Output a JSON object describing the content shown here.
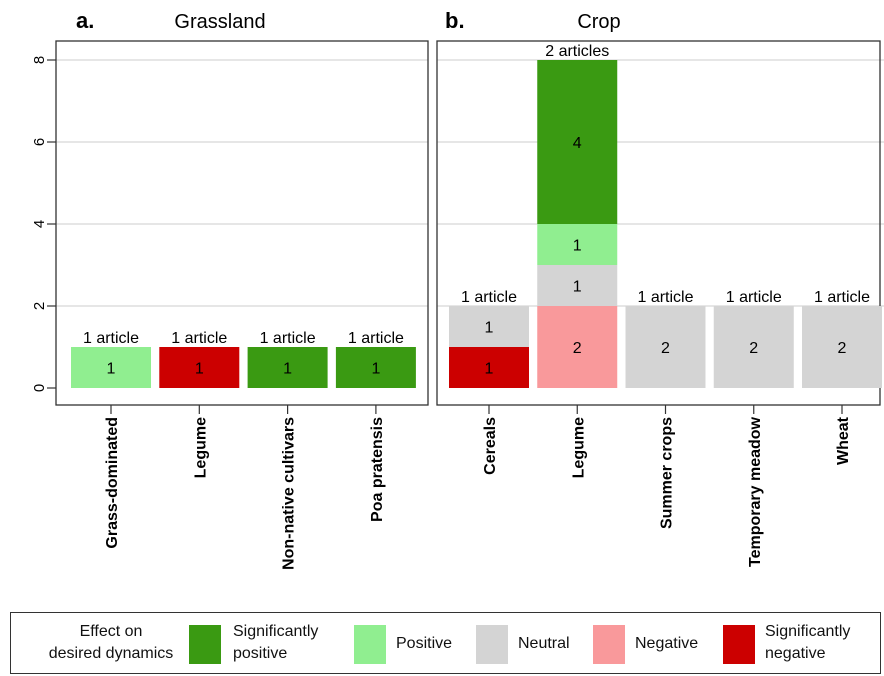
{
  "chart_data": {
    "type": "bar",
    "stacked": true,
    "yticks": [
      0,
      2,
      4,
      6,
      8
    ],
    "ylim": [
      0,
      8.4
    ],
    "grid": true,
    "colors": {
      "sig_pos": "#3a9a12",
      "pos": "#90ee90",
      "neutral": "#d4d4d4",
      "neg": "#f9999b",
      "sig_neg": "#cc0000"
    },
    "panels": [
      {
        "letter": "a.",
        "title": "Grassland",
        "bars": [
          {
            "category": "Grass-dominated",
            "article_label": "1 article",
            "segments": [
              {
                "effect": "pos",
                "value": 1,
                "label": "1"
              }
            ]
          },
          {
            "category": "Legume",
            "article_label": "1 article",
            "segments": [
              {
                "effect": "sig_neg",
                "value": 1,
                "label": "1"
              }
            ]
          },
          {
            "category": "Non-native cultivars",
            "article_label": "1 article",
            "segments": [
              {
                "effect": "sig_pos",
                "value": 1,
                "label": "1"
              }
            ]
          },
          {
            "category": "Poa pratensis",
            "article_label": "1 article",
            "segments": [
              {
                "effect": "sig_pos",
                "value": 1,
                "label": "1"
              }
            ]
          }
        ]
      },
      {
        "letter": "b.",
        "title": "Crop",
        "bars": [
          {
            "category": "Cereals",
            "article_label": "1 article",
            "segments": [
              {
                "effect": "sig_neg",
                "value": 1,
                "label": "1"
              },
              {
                "effect": "neutral",
                "value": 1,
                "label": "1"
              }
            ]
          },
          {
            "category": "Legume",
            "article_label": "2 articles",
            "segments": [
              {
                "effect": "neg",
                "value": 2,
                "label": "2"
              },
              {
                "effect": "neutral",
                "value": 1,
                "label": "1"
              },
              {
                "effect": "pos",
                "value": 1,
                "label": "1"
              },
              {
                "effect": "sig_pos",
                "value": 4,
                "label": "4"
              }
            ]
          },
          {
            "category": "Summer crops",
            "article_label": "1 article",
            "segments": [
              {
                "effect": "neutral",
                "value": 2,
                "label": "2"
              }
            ]
          },
          {
            "category": "Temporary meadow",
            "article_label": "1 article",
            "segments": [
              {
                "effect": "neutral",
                "value": 2,
                "label": "2"
              }
            ]
          },
          {
            "category": "Wheat",
            "article_label": "1 article",
            "segments": [
              {
                "effect": "neutral",
                "value": 2,
                "label": "2"
              }
            ]
          }
        ]
      }
    ],
    "legend": {
      "title_line1": "Effect on",
      "title_line2": "desired dynamics",
      "placement": "bottom",
      "items": [
        {
          "effect": "sig_pos",
          "line1": "Significantly",
          "line2": "positive"
        },
        {
          "effect": "pos",
          "line1": "Positive",
          "line2": ""
        },
        {
          "effect": "neutral",
          "line1": "Neutral",
          "line2": ""
        },
        {
          "effect": "neg",
          "line1": "Negative",
          "line2": ""
        },
        {
          "effect": "sig_neg",
          "line1": "Significantly",
          "line2": "negative"
        }
      ]
    }
  }
}
